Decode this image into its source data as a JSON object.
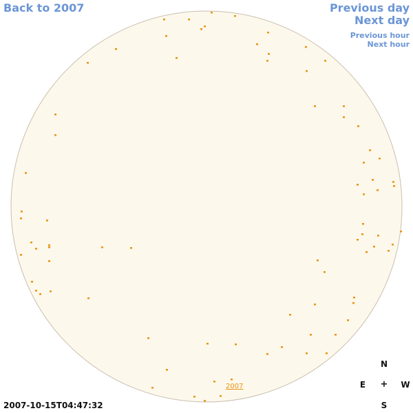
{
  "nav": {
    "back": "Back to 2007",
    "previous_day": "Previous day",
    "next_day": "Next day",
    "previous_hour": "Previous hour",
    "next_hour": "Next hour"
  },
  "timestamp": "2007-10-15T04:47:32",
  "compass": {
    "north": "N",
    "south": "S",
    "east": "E",
    "west": "W",
    "center": "+"
  },
  "year_label": "2007",
  "colors": {
    "link": "#6b96d6",
    "sky_fill": "#fdf8ec",
    "sky_border": "#c9bfae",
    "object": "#e8940e"
  }
}
